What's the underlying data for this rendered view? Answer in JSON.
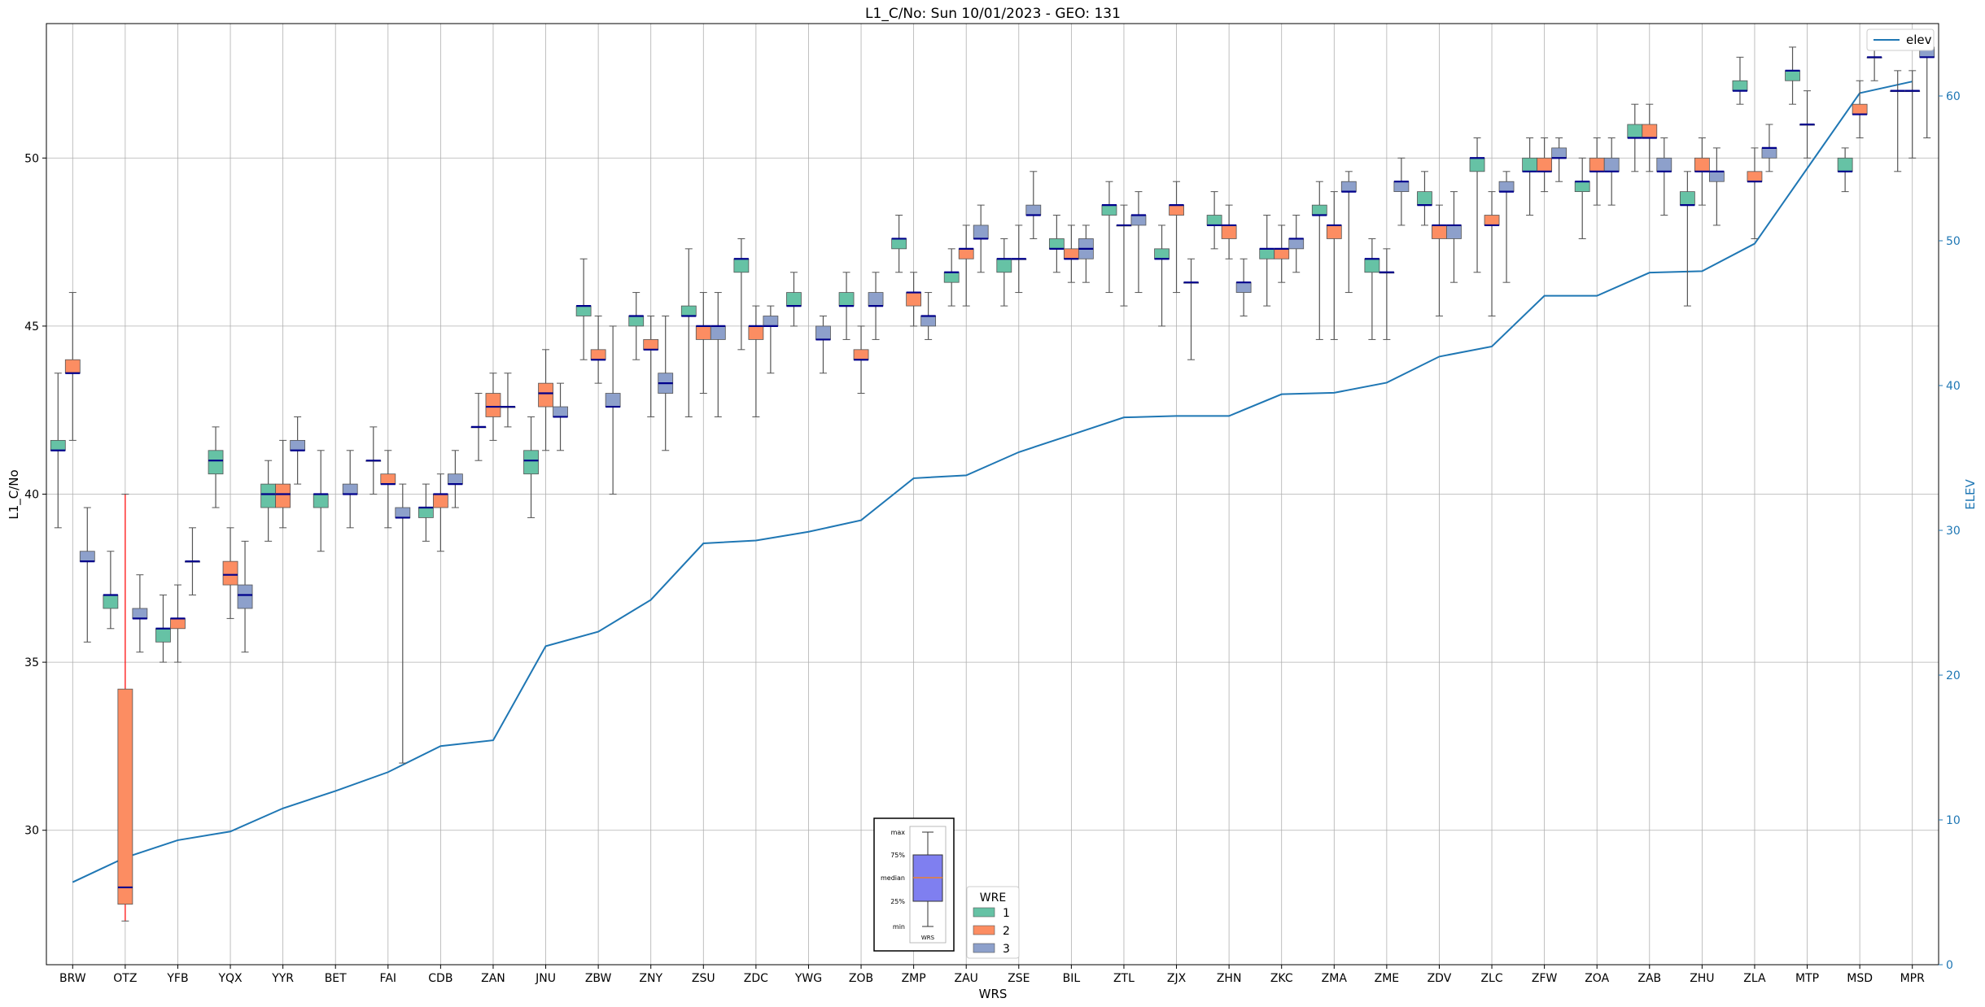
{
  "chart_data": {
    "type": "box",
    "title": "L1_C/No: Sun 10/01/2023 - GEO: 131",
    "xlabel": "WRS",
    "ylabel": "L1_C/No",
    "y2label": "ELEV",
    "ylim": [
      26.0,
      54.0
    ],
    "y2lim": [
      0,
      65
    ],
    "yticks": [
      30,
      35,
      40,
      45,
      50
    ],
    "y2ticks": [
      0,
      10,
      20,
      30,
      40,
      50,
      60
    ],
    "grid": true,
    "colors": {
      "1": "#66c2a5",
      "2": "#fc8d62",
      "3": "#8da0cb",
      "elev": "#1f77b4",
      "median": "#00008b",
      "outlier_whisker": "#ff0000"
    },
    "categories": [
      "BRW",
      "OTZ",
      "YFB",
      "YQX",
      "YYR",
      "BET",
      "FAI",
      "CDB",
      "ZAN",
      "JNU",
      "ZBW",
      "ZNY",
      "ZSU",
      "ZDC",
      "YWG",
      "ZOB",
      "ZMP",
      "ZAU",
      "ZSE",
      "BIL",
      "ZTL",
      "ZJX",
      "ZHN",
      "ZKC",
      "ZMA",
      "ZME",
      "ZDV",
      "ZLC",
      "ZFW",
      "ZOA",
      "ZAB",
      "ZHU",
      "ZLA",
      "MTP",
      "MSD",
      "MPR"
    ],
    "legend_elev": {
      "label": "elev",
      "placement": "top-right"
    },
    "legend_wre": {
      "title": "WRE",
      "labels": [
        "1",
        "2",
        "3"
      ],
      "placement": "bottom-center"
    },
    "legend_key": {
      "labels": [
        "max",
        "75%",
        "median",
        "25%",
        "min"
      ],
      "xlabel": "WRS"
    },
    "elev": [
      5.7,
      7.4,
      8.6,
      9.2,
      10.8,
      12.0,
      13.3,
      15.1,
      15.5,
      22.0,
      23.0,
      25.2,
      29.1,
      29.3,
      29.9,
      30.7,
      33.6,
      33.8,
      35.4,
      36.6,
      37.8,
      37.9,
      37.9,
      39.4,
      39.5,
      40.2,
      42.0,
      42.7,
      46.2,
      46.2,
      47.8,
      47.9,
      49.8,
      55.0,
      60.2,
      61.0
    ],
    "boxes": [
      {
        "wrs": "BRW",
        "wre": "1",
        "min": 39.0,
        "q1": 41.3,
        "median": 41.3,
        "q3": 41.6,
        "max": 43.6
      },
      {
        "wrs": "BRW",
        "wre": "2",
        "min": 41.6,
        "q1": 43.6,
        "median": 43.6,
        "q3": 44.0,
        "max": 46.0
      },
      {
        "wrs": "BRW",
        "wre": "3",
        "min": 35.6,
        "q1": 38.0,
        "median": 38.0,
        "q3": 38.3,
        "max": 39.6
      },
      {
        "wrs": "OTZ",
        "wre": "1",
        "min": 36.0,
        "q1": 36.6,
        "median": 37.0,
        "q3": 37.0,
        "max": 38.3
      },
      {
        "wrs": "OTZ",
        "wre": "2",
        "min": 27.3,
        "q1": 27.8,
        "median": 28.3,
        "q3": 34.2,
        "max": 40.0
      },
      {
        "wrs": "OTZ",
        "wre": "3",
        "min": 35.3,
        "q1": 36.3,
        "median": 36.3,
        "q3": 36.6,
        "max": 37.6
      },
      {
        "wrs": "YFB",
        "wre": "1",
        "min": 35.0,
        "q1": 35.6,
        "median": 36.0,
        "q3": 36.0,
        "max": 37.0
      },
      {
        "wrs": "YFB",
        "wre": "2",
        "min": 35.0,
        "q1": 36.0,
        "median": 36.3,
        "q3": 36.3,
        "max": 37.3
      },
      {
        "wrs": "YFB",
        "wre": "3",
        "min": 37.0,
        "q1": 38.0,
        "median": 38.0,
        "q3": 38.0,
        "max": 39.0
      },
      {
        "wrs": "YQX",
        "wre": "1",
        "min": 39.6,
        "q1": 40.6,
        "median": 41.0,
        "q3": 41.3,
        "max": 42.0
      },
      {
        "wrs": "YQX",
        "wre": "2",
        "min": 36.3,
        "q1": 37.3,
        "median": 37.6,
        "q3": 38.0,
        "max": 39.0
      },
      {
        "wrs": "YQX",
        "wre": "3",
        "min": 35.3,
        "q1": 36.6,
        "median": 37.0,
        "q3": 37.3,
        "max": 38.6
      },
      {
        "wrs": "YYR",
        "wre": "1",
        "min": 38.6,
        "q1": 39.6,
        "median": 40.0,
        "q3": 40.3,
        "max": 41.0
      },
      {
        "wrs": "YYR",
        "wre": "2",
        "min": 39.0,
        "q1": 39.6,
        "median": 40.0,
        "q3": 40.3,
        "max": 41.6
      },
      {
        "wrs": "YYR",
        "wre": "3",
        "min": 40.3,
        "q1": 41.3,
        "median": 41.3,
        "q3": 41.6,
        "max": 42.3
      },
      {
        "wrs": "BET",
        "wre": "1",
        "min": 38.3,
        "q1": 39.6,
        "median": 40.0,
        "q3": 40.0,
        "max": 41.3
      },
      {
        "wrs": "BET",
        "wre": "3",
        "min": 39.0,
        "q1": 40.0,
        "median": 40.0,
        "q3": 40.3,
        "max": 41.3
      },
      {
        "wrs": "FAI",
        "wre": "1",
        "min": 40.0,
        "q1": 41.0,
        "median": 41.0,
        "q3": 41.0,
        "max": 42.0
      },
      {
        "wrs": "FAI",
        "wre": "2",
        "min": 39.0,
        "q1": 40.3,
        "median": 40.3,
        "q3": 40.6,
        "max": 41.3
      },
      {
        "wrs": "FAI",
        "wre": "3",
        "min": 32.0,
        "q1": 39.3,
        "median": 39.3,
        "q3": 39.6,
        "max": 40.3
      },
      {
        "wrs": "CDB",
        "wre": "1",
        "min": 38.6,
        "q1": 39.3,
        "median": 39.6,
        "q3": 39.6,
        "max": 40.3
      },
      {
        "wrs": "CDB",
        "wre": "2",
        "min": 38.3,
        "q1": 39.6,
        "median": 40.0,
        "q3": 40.0,
        "max": 40.6
      },
      {
        "wrs": "CDB",
        "wre": "3",
        "min": 39.6,
        "q1": 40.3,
        "median": 40.3,
        "q3": 40.6,
        "max": 41.3
      },
      {
        "wrs": "ZAN",
        "wre": "1",
        "min": 41.0,
        "q1": 42.0,
        "median": 42.0,
        "q3": 42.0,
        "max": 43.0
      },
      {
        "wrs": "ZAN",
        "wre": "2",
        "min": 41.6,
        "q1": 42.3,
        "median": 42.6,
        "q3": 43.0,
        "max": 43.6
      },
      {
        "wrs": "ZAN",
        "wre": "3",
        "min": 42.0,
        "q1": 42.6,
        "median": 42.6,
        "q3": 42.6,
        "max": 43.6
      },
      {
        "wrs": "JNU",
        "wre": "1",
        "min": 39.3,
        "q1": 40.6,
        "median": 41.0,
        "q3": 41.3,
        "max": 42.3
      },
      {
        "wrs": "JNU",
        "wre": "2",
        "min": 41.3,
        "q1": 42.6,
        "median": 43.0,
        "q3": 43.3,
        "max": 44.3
      },
      {
        "wrs": "JNU",
        "wre": "3",
        "min": 41.3,
        "q1": 42.3,
        "median": 42.3,
        "q3": 42.6,
        "max": 43.3
      },
      {
        "wrs": "ZBW",
        "wre": "1",
        "min": 44.0,
        "q1": 45.3,
        "median": 45.6,
        "q3": 45.6,
        "max": 47.0
      },
      {
        "wrs": "ZBW",
        "wre": "2",
        "min": 43.3,
        "q1": 44.0,
        "median": 44.0,
        "q3": 44.3,
        "max": 45.3
      },
      {
        "wrs": "ZBW",
        "wre": "3",
        "min": 40.0,
        "q1": 42.6,
        "median": 42.6,
        "q3": 43.0,
        "max": 45.0
      },
      {
        "wrs": "ZNY",
        "wre": "1",
        "min": 44.0,
        "q1": 45.0,
        "median": 45.3,
        "q3": 45.3,
        "max": 46.0
      },
      {
        "wrs": "ZNY",
        "wre": "2",
        "min": 42.3,
        "q1": 44.3,
        "median": 44.3,
        "q3": 44.6,
        "max": 45.3
      },
      {
        "wrs": "ZNY",
        "wre": "3",
        "min": 41.3,
        "q1": 43.0,
        "median": 43.3,
        "q3": 43.6,
        "max": 45.3
      },
      {
        "wrs": "ZSU",
        "wre": "1",
        "min": 42.3,
        "q1": 45.3,
        "median": 45.3,
        "q3": 45.6,
        "max": 47.3
      },
      {
        "wrs": "ZSU",
        "wre": "2",
        "min": 43.0,
        "q1": 44.6,
        "median": 45.0,
        "q3": 45.0,
        "max": 46.0
      },
      {
        "wrs": "ZSU",
        "wre": "3",
        "min": 42.3,
        "q1": 44.6,
        "median": 45.0,
        "q3": 45.0,
        "max": 46.0
      },
      {
        "wrs": "ZDC",
        "wre": "1",
        "min": 44.3,
        "q1": 46.6,
        "median": 47.0,
        "q3": 47.0,
        "max": 47.6
      },
      {
        "wrs": "ZDC",
        "wre": "2",
        "min": 42.3,
        "q1": 44.6,
        "median": 45.0,
        "q3": 45.0,
        "max": 45.6
      },
      {
        "wrs": "ZDC",
        "wre": "3",
        "min": 43.6,
        "q1": 45.0,
        "median": 45.0,
        "q3": 45.3,
        "max": 45.6
      },
      {
        "wrs": "YWG",
        "wre": "1",
        "min": 45.0,
        "q1": 45.6,
        "median": 45.6,
        "q3": 46.0,
        "max": 46.6
      },
      {
        "wrs": "YWG",
        "wre": "3",
        "min": 43.6,
        "q1": 44.6,
        "median": 44.6,
        "q3": 45.0,
        "max": 45.3
      },
      {
        "wrs": "ZOB",
        "wre": "1",
        "min": 44.6,
        "q1": 45.6,
        "median": 45.6,
        "q3": 46.0,
        "max": 46.6
      },
      {
        "wrs": "ZOB",
        "wre": "2",
        "min": 43.0,
        "q1": 44.0,
        "median": 44.0,
        "q3": 44.3,
        "max": 45.0
      },
      {
        "wrs": "ZOB",
        "wre": "3",
        "min": 44.6,
        "q1": 45.6,
        "median": 45.6,
        "q3": 46.0,
        "max": 46.6
      },
      {
        "wrs": "ZMP",
        "wre": "1",
        "min": 46.6,
        "q1": 47.3,
        "median": 47.6,
        "q3": 47.6,
        "max": 48.3
      },
      {
        "wrs": "ZMP",
        "wre": "2",
        "min": 45.0,
        "q1": 45.6,
        "median": 46.0,
        "q3": 46.0,
        "max": 46.6
      },
      {
        "wrs": "ZMP",
        "wre": "3",
        "min": 44.6,
        "q1": 45.0,
        "median": 45.3,
        "q3": 45.3,
        "max": 46.0
      },
      {
        "wrs": "ZAU",
        "wre": "1",
        "min": 45.6,
        "q1": 46.3,
        "median": 46.6,
        "q3": 46.6,
        "max": 47.3
      },
      {
        "wrs": "ZAU",
        "wre": "2",
        "min": 45.6,
        "q1": 47.0,
        "median": 47.3,
        "q3": 47.3,
        "max": 48.0
      },
      {
        "wrs": "ZAU",
        "wre": "3",
        "min": 46.6,
        "q1": 47.6,
        "median": 47.6,
        "q3": 48.0,
        "max": 48.6
      },
      {
        "wrs": "ZSE",
        "wre": "1",
        "min": 45.6,
        "q1": 46.6,
        "median": 47.0,
        "q3": 47.0,
        "max": 47.6
      },
      {
        "wrs": "ZSE",
        "wre": "2",
        "min": 46.0,
        "q1": 47.0,
        "median": 47.0,
        "q3": 47.0,
        "max": 48.0
      },
      {
        "wrs": "ZSE",
        "wre": "3",
        "min": 47.6,
        "q1": 48.3,
        "median": 48.3,
        "q3": 48.6,
        "max": 49.6
      },
      {
        "wrs": "BIL",
        "wre": "1",
        "min": 46.6,
        "q1": 47.3,
        "median": 47.3,
        "q3": 47.6,
        "max": 48.3
      },
      {
        "wrs": "BIL",
        "wre": "2",
        "min": 46.3,
        "q1": 47.0,
        "median": 47.0,
        "q3": 47.3,
        "max": 48.0
      },
      {
        "wrs": "BIL",
        "wre": "3",
        "min": 46.3,
        "q1": 47.0,
        "median": 47.3,
        "q3": 47.6,
        "max": 48.0
      },
      {
        "wrs": "ZTL",
        "wre": "1",
        "min": 46.0,
        "q1": 48.3,
        "median": 48.6,
        "q3": 48.6,
        "max": 49.3
      },
      {
        "wrs": "ZTL",
        "wre": "2",
        "min": 45.6,
        "q1": 48.0,
        "median": 48.0,
        "q3": 48.0,
        "max": 48.6
      },
      {
        "wrs": "ZTL",
        "wre": "3",
        "min": 46.0,
        "q1": 48.0,
        "median": 48.3,
        "q3": 48.3,
        "max": 49.0
      },
      {
        "wrs": "ZJX",
        "wre": "1",
        "min": 45.0,
        "q1": 47.0,
        "median": 47.0,
        "q3": 47.3,
        "max": 48.0
      },
      {
        "wrs": "ZJX",
        "wre": "2",
        "min": 46.0,
        "q1": 48.3,
        "median": 48.6,
        "q3": 48.6,
        "max": 49.3
      },
      {
        "wrs": "ZJX",
        "wre": "3",
        "min": 44.0,
        "q1": 46.3,
        "median": 46.3,
        "q3": 46.3,
        "max": 47.0
      },
      {
        "wrs": "ZHN",
        "wre": "1",
        "min": 47.3,
        "q1": 48.0,
        "median": 48.0,
        "q3": 48.3,
        "max": 49.0
      },
      {
        "wrs": "ZHN",
        "wre": "2",
        "min": 47.0,
        "q1": 47.6,
        "median": 48.0,
        "q3": 48.0,
        "max": 48.6
      },
      {
        "wrs": "ZHN",
        "wre": "3",
        "min": 45.3,
        "q1": 46.0,
        "median": 46.3,
        "q3": 46.3,
        "max": 47.0
      },
      {
        "wrs": "ZKC",
        "wre": "1",
        "min": 45.6,
        "q1": 47.0,
        "median": 47.3,
        "q3": 47.3,
        "max": 48.3
      },
      {
        "wrs": "ZKC",
        "wre": "2",
        "min": 46.3,
        "q1": 47.0,
        "median": 47.3,
        "q3": 47.3,
        "max": 48.0
      },
      {
        "wrs": "ZKC",
        "wre": "3",
        "min": 46.6,
        "q1": 47.3,
        "median": 47.6,
        "q3": 47.6,
        "max": 48.3
      },
      {
        "wrs": "ZMA",
        "wre": "1",
        "min": 44.6,
        "q1": 48.3,
        "median": 48.3,
        "q3": 48.6,
        "max": 49.3
      },
      {
        "wrs": "ZMA",
        "wre": "2",
        "min": 44.6,
        "q1": 47.6,
        "median": 48.0,
        "q3": 48.0,
        "max": 49.0
      },
      {
        "wrs": "ZMA",
        "wre": "3",
        "min": 46.0,
        "q1": 49.0,
        "median": 49.0,
        "q3": 49.3,
        "max": 49.6
      },
      {
        "wrs": "ZME",
        "wre": "1",
        "min": 44.6,
        "q1": 46.6,
        "median": 47.0,
        "q3": 47.0,
        "max": 47.6
      },
      {
        "wrs": "ZME",
        "wre": "2",
        "min": 44.6,
        "q1": 46.6,
        "median": 46.6,
        "q3": 46.6,
        "max": 47.3
      },
      {
        "wrs": "ZME",
        "wre": "3",
        "min": 48.0,
        "q1": 49.0,
        "median": 49.3,
        "q3": 49.3,
        "max": 50.0
      },
      {
        "wrs": "ZDV",
        "wre": "1",
        "min": 48.0,
        "q1": 48.6,
        "median": 48.6,
        "q3": 49.0,
        "max": 49.6
      },
      {
        "wrs": "ZDV",
        "wre": "2",
        "min": 45.3,
        "q1": 47.6,
        "median": 48.0,
        "q3": 48.0,
        "max": 48.6
      },
      {
        "wrs": "ZDV",
        "wre": "3",
        "min": 46.3,
        "q1": 47.6,
        "median": 48.0,
        "q3": 48.0,
        "max": 49.0
      },
      {
        "wrs": "ZLC",
        "wre": "1",
        "min": 46.6,
        "q1": 49.6,
        "median": 50.0,
        "q3": 50.0,
        "max": 50.6
      },
      {
        "wrs": "ZLC",
        "wre": "2",
        "min": 45.3,
        "q1": 48.0,
        "median": 48.0,
        "q3": 48.3,
        "max": 49.0
      },
      {
        "wrs": "ZLC",
        "wre": "3",
        "min": 46.3,
        "q1": 49.0,
        "median": 49.0,
        "q3": 49.3,
        "max": 49.6
      },
      {
        "wrs": "ZFW",
        "wre": "1",
        "min": 48.3,
        "q1": 49.6,
        "median": 49.6,
        "q3": 50.0,
        "max": 50.6
      },
      {
        "wrs": "ZFW",
        "wre": "2",
        "min": 49.0,
        "q1": 49.6,
        "median": 49.6,
        "q3": 50.0,
        "max": 50.6
      },
      {
        "wrs": "ZFW",
        "wre": "3",
        "min": 49.3,
        "q1": 50.0,
        "median": 50.0,
        "q3": 50.3,
        "max": 50.6
      },
      {
        "wrs": "ZOA",
        "wre": "1",
        "min": 47.6,
        "q1": 49.0,
        "median": 49.3,
        "q3": 49.3,
        "max": 50.0
      },
      {
        "wrs": "ZOA",
        "wre": "2",
        "min": 48.6,
        "q1": 49.6,
        "median": 49.6,
        "q3": 50.0,
        "max": 50.6
      },
      {
        "wrs": "ZOA",
        "wre": "3",
        "min": 48.6,
        "q1": 49.6,
        "median": 49.6,
        "q3": 50.0,
        "max": 50.6
      },
      {
        "wrs": "ZAB",
        "wre": "1",
        "min": 49.6,
        "q1": 50.6,
        "median": 50.6,
        "q3": 51.0,
        "max": 51.6
      },
      {
        "wrs": "ZAB",
        "wre": "2",
        "min": 49.6,
        "q1": 50.6,
        "median": 50.6,
        "q3": 51.0,
        "max": 51.6
      },
      {
        "wrs": "ZAB",
        "wre": "3",
        "min": 48.3,
        "q1": 49.6,
        "median": 49.6,
        "q3": 50.0,
        "max": 50.6
      },
      {
        "wrs": "ZHU",
        "wre": "1",
        "min": 45.6,
        "q1": 48.6,
        "median": 48.6,
        "q3": 49.0,
        "max": 49.6
      },
      {
        "wrs": "ZHU",
        "wre": "2",
        "min": 48.6,
        "q1": 49.6,
        "median": 49.6,
        "q3": 50.0,
        "max": 50.6
      },
      {
        "wrs": "ZHU",
        "wre": "3",
        "min": 48.0,
        "q1": 49.3,
        "median": 49.6,
        "q3": 49.6,
        "max": 50.3
      },
      {
        "wrs": "ZLA",
        "wre": "1",
        "min": 51.6,
        "q1": 52.0,
        "median": 52.0,
        "q3": 52.3,
        "max": 53.0
      },
      {
        "wrs": "ZLA",
        "wre": "2",
        "min": 47.6,
        "q1": 49.3,
        "median": 49.3,
        "q3": 49.6,
        "max": 50.3
      },
      {
        "wrs": "ZLA",
        "wre": "3",
        "min": 49.6,
        "q1": 50.0,
        "median": 50.3,
        "q3": 50.3,
        "max": 51.0
      },
      {
        "wrs": "MTP",
        "wre": "1",
        "min": 51.6,
        "q1": 52.3,
        "median": 52.6,
        "q3": 52.6,
        "max": 53.3
      },
      {
        "wrs": "MTP",
        "wre": "2",
        "min": 50.0,
        "q1": 51.0,
        "median": 51.0,
        "q3": 51.0,
        "max": 52.0
      },
      {
        "wrs": "MSD",
        "wre": "1",
        "min": 49.0,
        "q1": 49.6,
        "median": 49.6,
        "q3": 50.0,
        "max": 50.3
      },
      {
        "wrs": "MSD",
        "wre": "2",
        "min": 50.6,
        "q1": 51.3,
        "median": 51.3,
        "q3": 51.6,
        "max": 52.3
      },
      {
        "wrs": "MSD",
        "wre": "3",
        "min": 52.3,
        "q1": 53.0,
        "median": 53.0,
        "q3": 53.0,
        "max": 53.6
      },
      {
        "wrs": "MPR",
        "wre": "1",
        "min": 49.6,
        "q1": 52.0,
        "median": 52.0,
        "q3": 52.0,
        "max": 52.6
      },
      {
        "wrs": "MPR",
        "wre": "2",
        "min": 50.0,
        "q1": 52.0,
        "median": 52.0,
        "q3": 52.0,
        "max": 52.6
      },
      {
        "wrs": "MPR",
        "wre": "3",
        "min": 50.6,
        "q1": 53.0,
        "median": 53.0,
        "q3": 53.3,
        "max": 53.6
      }
    ]
  }
}
